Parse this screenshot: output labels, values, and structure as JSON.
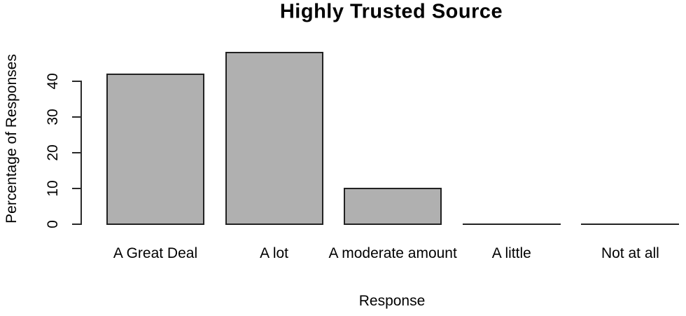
{
  "chart_data": {
    "type": "bar",
    "title": "Highly Trusted Source",
    "xlabel": "Response",
    "ylabel": "Percentage of Responses",
    "categories": [
      "A Great Deal",
      "A lot",
      "A moderate amount",
      "A little",
      "Not at all"
    ],
    "values": [
      42,
      48,
      10,
      0,
      0
    ],
    "yticks": [
      0,
      10,
      20,
      30,
      40
    ],
    "ylim": [
      0,
      48
    ],
    "grid": false,
    "legend": false,
    "style": "R base barplot",
    "bar_fill_color": "#b0b0b0",
    "bar_border_color": "#222222",
    "axis_color": "#2a2a2a",
    "text_color": "#000000",
    "background_color": "#ffffff"
  }
}
